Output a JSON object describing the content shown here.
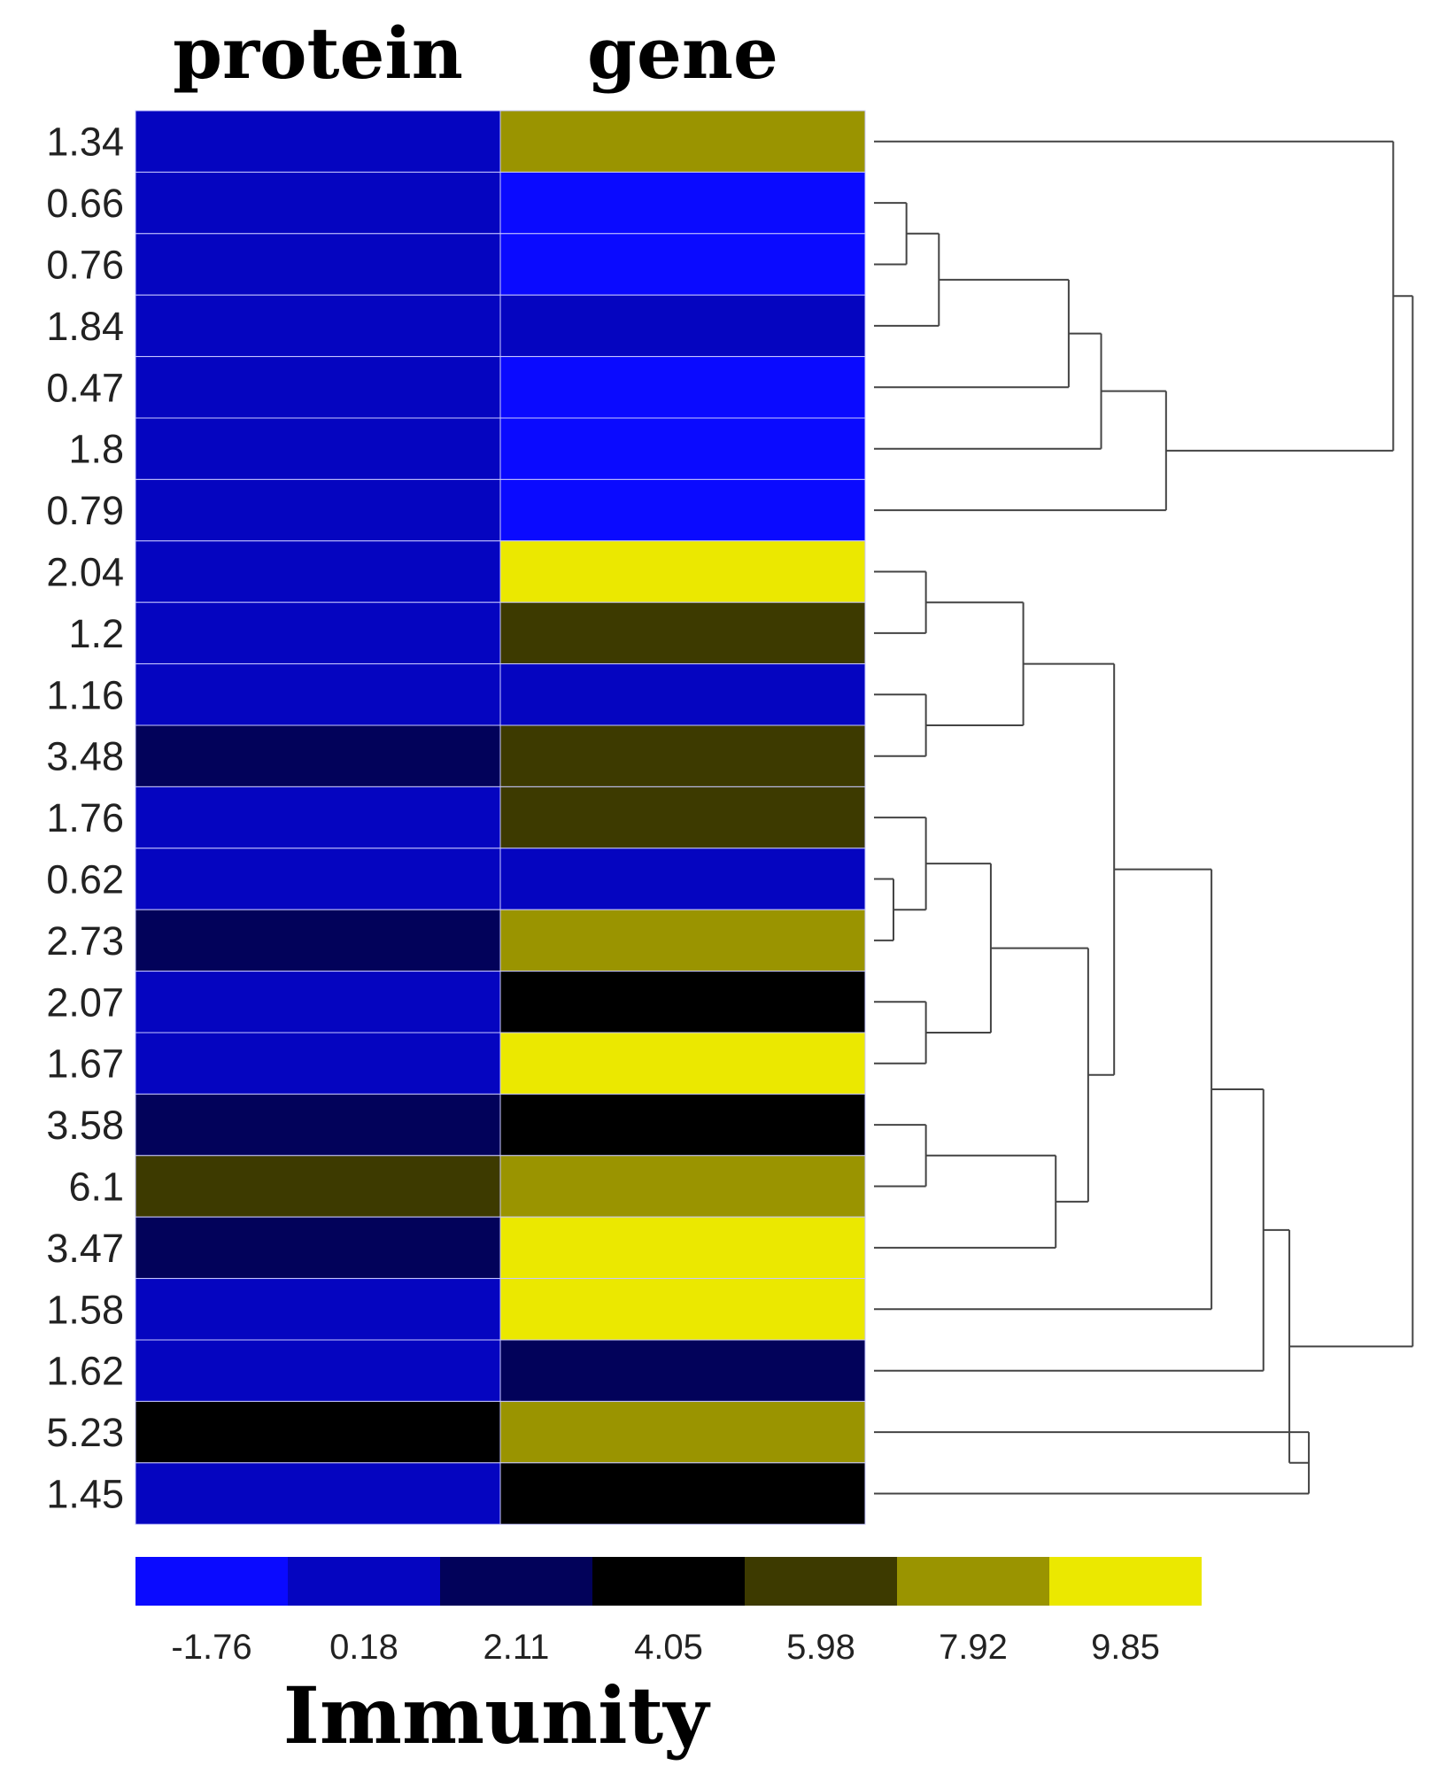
{
  "chart_data": {
    "type": "heatmap",
    "columns": [
      "protein",
      "gene"
    ],
    "row_labels": [
      "1.34",
      "0.66",
      "0.76",
      "1.84",
      "0.47",
      "1.8",
      "0.79",
      "2.04",
      "1.2",
      "1.16",
      "3.48",
      "1.76",
      "0.62",
      "2.73",
      "2.07",
      "1.67",
      "3.58",
      "6.1",
      "3.47",
      "1.58",
      "1.62",
      "5.23",
      "1.45"
    ],
    "values": [
      [
        0.18,
        7.92
      ],
      [
        0.18,
        -1.76
      ],
      [
        0.18,
        -1.76
      ],
      [
        0.18,
        0.18
      ],
      [
        0.18,
        -1.76
      ],
      [
        0.18,
        -1.76
      ],
      [
        0.18,
        -1.76
      ],
      [
        0.18,
        9.85
      ],
      [
        0.18,
        5.98
      ],
      [
        0.18,
        0.18
      ],
      [
        2.11,
        5.98
      ],
      [
        0.18,
        5.98
      ],
      [
        0.18,
        0.18
      ],
      [
        2.11,
        7.92
      ],
      [
        0.18,
        4.05
      ],
      [
        0.18,
        9.85
      ],
      [
        2.11,
        4.05
      ],
      [
        5.98,
        7.92
      ],
      [
        2.11,
        9.85
      ],
      [
        0.18,
        9.85
      ],
      [
        0.18,
        2.11
      ],
      [
        4.05,
        7.92
      ],
      [
        0.18,
        4.05
      ]
    ],
    "color_scale": {
      "ticks": [
        "-1.76",
        "0.18",
        "2.11",
        "4.05",
        "5.98",
        "7.92",
        "9.85"
      ],
      "colors": [
        "#0a0aff",
        "#0505c0",
        "#02025a",
        "#000000",
        "#3d3a00",
        "#9a9400",
        "#ebe800"
      ]
    },
    "legend_title": "Immunity",
    "dendrogram": {
      "placement": "right",
      "clusters": [
        [
          [
            1,
            2
          ],
          0.05
        ],
        [
          [
            1,
            2,
            3
          ],
          0.1
        ],
        [
          [
            1,
            2,
            3,
            4
          ],
          0.3
        ],
        [
          [
            1,
            2,
            3,
            4,
            5
          ],
          0.35
        ],
        [
          [
            1,
            2,
            3,
            4,
            5,
            6
          ],
          0.45
        ],
        [
          [
            7,
            8
          ],
          0.08
        ],
        [
          [
            9,
            10
          ],
          0.08
        ],
        [
          [
            7,
            8,
            9,
            10
          ],
          0.23
        ],
        [
          [
            12,
            13
          ],
          0.03
        ],
        [
          [
            11,
            12,
            13
          ],
          0.08
        ],
        [
          [
            14,
            15
          ],
          0.08
        ],
        [
          [
            11,
            12,
            13,
            14,
            15
          ],
          0.18
        ],
        [
          [
            16,
            17
          ],
          0.08
        ],
        [
          [
            16,
            17,
            18
          ],
          0.28
        ],
        [
          [
            11,
            12,
            13,
            14,
            15,
            16,
            17,
            18
          ],
          0.33
        ],
        [
          [
            7,
            8,
            9,
            10,
            11,
            12,
            13,
            14,
            15,
            16,
            17,
            18
          ],
          0.37
        ],
        [
          [
            7,
            8,
            9,
            10,
            11,
            12,
            13,
            14,
            15,
            16,
            17,
            18,
            19
          ],
          0.52
        ],
        [
          [
            7,
            8,
            9,
            10,
            11,
            12,
            13,
            14,
            15,
            16,
            17,
            18,
            19,
            20
          ],
          0.6
        ],
        [
          [
            21,
            22
          ],
          0.67
        ],
        [
          [
            7,
            8,
            9,
            10,
            11,
            12,
            13,
            14,
            15,
            16,
            17,
            18,
            19,
            20,
            21,
            22
          ],
          0.64
        ],
        [
          [
            0,
            1,
            2,
            3,
            4,
            5,
            6
          ],
          0.8
        ],
        [
          [
            0,
            1,
            2,
            3,
            4,
            5,
            6,
            7,
            8,
            9,
            10,
            11,
            12,
            13,
            14,
            15,
            16,
            17,
            18,
            19,
            20,
            21,
            22
          ],
          0.83
        ]
      ]
    }
  }
}
